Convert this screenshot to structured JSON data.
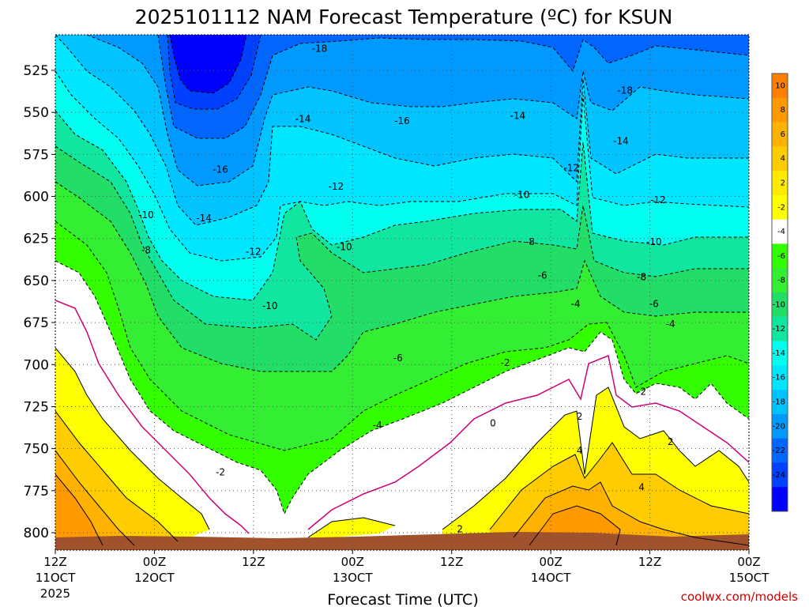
{
  "chart_data": {
    "type": "contour",
    "title": "2025101112 NAM Forecast Temperature (ºC) for KSUN",
    "xlabel": "Forecast Time (UTC)",
    "ylabel": "",
    "credit": "coolwx.com/models",
    "x_ticks": [
      {
        "hour": 0,
        "line1": "12Z",
        "line2": "11OCT",
        "line3": "2025"
      },
      {
        "hour": 12,
        "line1": "00Z",
        "line2": "12OCT",
        "line3": ""
      },
      {
        "hour": 24,
        "line1": "12Z",
        "line2": "",
        "line3": ""
      },
      {
        "hour": 36,
        "line1": "00Z",
        "line2": "13OCT",
        "line3": ""
      },
      {
        "hour": 48,
        "line1": "12Z",
        "line2": "",
        "line3": ""
      },
      {
        "hour": 60,
        "line1": "00Z",
        "line2": "14OCT",
        "line3": ""
      },
      {
        "hour": 72,
        "line1": "12Z",
        "line2": "",
        "line3": ""
      },
      {
        "hour": 84,
        "line1": "00Z",
        "line2": "15OCT",
        "line3": ""
      }
    ],
    "y_ticks": [
      525,
      550,
      575,
      600,
      625,
      650,
      675,
      700,
      725,
      750,
      775,
      800
    ],
    "xlim": [
      0,
      84
    ],
    "ylim": [
      810,
      503
    ],
    "grid": true,
    "colorbar": {
      "ticks": [
        "10",
        "8",
        "6",
        "4",
        "2",
        "-2",
        "-4",
        "-6",
        "-8",
        "-10",
        "-12",
        "-14",
        "-16",
        "-18",
        "-20",
        "-22",
        "-24"
      ],
      "colors": [
        "#ff7f00",
        "#ff9900",
        "#ffb300",
        "#ffcc00",
        "#ffea00",
        "#ffff00",
        "#ffffff",
        "#33ff00",
        "#33ee33",
        "#22dd66",
        "#11e6a0",
        "#00ffee",
        "#00e6ff",
        "#00c3ff",
        "#0099ff",
        "#0066ff",
        "#0040ff",
        "#0000ff"
      ]
    },
    "contour_labels": [
      {
        "text": "-18",
        "hour": 32,
        "p": 512
      },
      {
        "text": "-18",
        "hour": 69,
        "p": 537
      },
      {
        "text": "-14",
        "hour": 30,
        "p": 554
      },
      {
        "text": "-16",
        "hour": 42,
        "p": 555
      },
      {
        "text": "-14",
        "hour": 56,
        "p": 552
      },
      {
        "text": "-14",
        "hour": 68.5,
        "p": 567
      },
      {
        "text": "-16",
        "hour": 20,
        "p": 584
      },
      {
        "text": "-12",
        "hour": 34,
        "p": 594
      },
      {
        "text": "-12",
        "hour": 62.5,
        "p": 583
      },
      {
        "text": "-10",
        "hour": 56.5,
        "p": 599
      },
      {
        "text": "-12",
        "hour": 73,
        "p": 602
      },
      {
        "text": "-10",
        "hour": 11,
        "p": 611
      },
      {
        "text": "-14",
        "hour": 18,
        "p": 613
      },
      {
        "text": "-10",
        "hour": 35,
        "p": 630
      },
      {
        "text": "-8",
        "hour": 57.5,
        "p": 627
      },
      {
        "text": "-10",
        "hour": 72.5,
        "p": 627
      },
      {
        "text": "-8",
        "hour": 11,
        "p": 632
      },
      {
        "text": "-12",
        "hour": 24,
        "p": 633
      },
      {
        "text": "-6",
        "hour": 59,
        "p": 647
      },
      {
        "text": "-8",
        "hour": 71,
        "p": 648
      },
      {
        "text": "-10",
        "hour": 26,
        "p": 665
      },
      {
        "text": "-4",
        "hour": 63,
        "p": 664
      },
      {
        "text": "-6",
        "hour": 72.5,
        "p": 664
      },
      {
        "text": "-4",
        "hour": 74.5,
        "p": 676
      },
      {
        "text": "-6",
        "hour": 41.5,
        "p": 696
      },
      {
        "text": "-2",
        "hour": 54.5,
        "p": 699
      },
      {
        "text": "-2",
        "hour": 71,
        "p": 716
      },
      {
        "text": "-4",
        "hour": 39,
        "p": 736
      },
      {
        "text": "0",
        "hour": 53,
        "p": 735
      },
      {
        "text": "2",
        "hour": 63.5,
        "p": 731
      },
      {
        "text": "4",
        "hour": 63.5,
        "p": 751
      },
      {
        "text": "2",
        "hour": 74.5,
        "p": 746
      },
      {
        "text": "-2",
        "hour": 20,
        "p": 764
      },
      {
        "text": "4",
        "hour": 71,
        "p": 773
      },
      {
        "text": "2",
        "hour": 49,
        "p": 798
      }
    ]
  }
}
